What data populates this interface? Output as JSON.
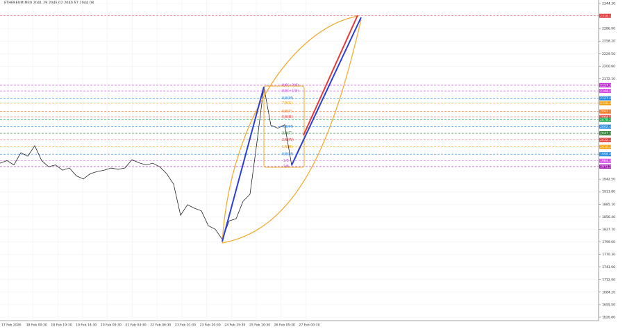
{
  "chart_data": {
    "type": "line",
    "title": "ETHEREUM,M30 2041.29 2045.02 2040.57 2044.08",
    "color": "#222222",
    "values": [
      1979,
      1985,
      1975,
      2003,
      1995,
      2019,
      1985,
      1971,
      1975,
      1963,
      1968,
      1950,
      1943,
      1955,
      1960,
      1963,
      1968,
      1965,
      1968,
      1987,
      1980,
      1975,
      1979,
      1971,
      1955,
      1931,
      1860,
      1884,
      1876,
      1870,
      1836,
      1828,
      1805,
      1847,
      1852,
      1892,
      1908,
      2027,
      2154,
      2066,
      2059,
      2067,
      1974,
      2011,
      2043
    ],
    "x_labels": [
      "17 Feb 2026",
      "18 Feb 00:30",
      "18 Feb 19:30",
      "19 Feb 14:30",
      "20 Feb 09:30",
      "21 Feb 04:30",
      "22 Feb 06:30",
      "23 Feb 01:30",
      "23 Feb 20:30",
      "24 Feb 15:30",
      "25 Feb 10:30",
      "26 Feb 05:30",
      "27 Feb 00:30"
    ],
    "ylim": [
      1626.8,
      2344.3
    ],
    "yticks": [
      {
        "value": 2344.3,
        "label": "2344.30"
      },
      {
        "value": 2286.9,
        "label": "2286.90"
      },
      {
        "value": 2258.2,
        "label": "2258.20"
      },
      {
        "value": 2229.5,
        "label": "2229.50"
      },
      {
        "value": 2200.8,
        "label": "2200.80"
      },
      {
        "value": 2172.1,
        "label": "2172.10"
      },
      {
        "value": 1942.5,
        "label": "1942.50"
      },
      {
        "value": 1913.8,
        "label": "1913.80"
      },
      {
        "value": 1885.1,
        "label": "1885.10"
      },
      {
        "value": 1856.4,
        "label": "1856.40"
      },
      {
        "value": 1827.7,
        "label": "1827.70"
      },
      {
        "value": 1799,
        "label": "1799.00"
      },
      {
        "value": 1770.3,
        "label": "1770.30"
      },
      {
        "value": 1741.6,
        "label": "1741.60"
      },
      {
        "value": 1712.9,
        "label": "1712.90"
      },
      {
        "value": 1684.2,
        "label": "1684.20"
      },
      {
        "value": 1655.5,
        "label": "1655.50"
      },
      {
        "value": 1626.8,
        "label": "1626.80"
      }
    ],
    "grid": true,
    "levels": [
      {
        "value": 2316.12,
        "color": "#e53935"
      },
      {
        "value": 2157.34,
        "color": "#c026d3",
        "name": "8/8(+2/8)"
      },
      {
        "value": 2144.21,
        "color": "#d946ef",
        "name": "8/8(+1/8)"
      },
      {
        "value": 2127.46,
        "color": "#1e88e5",
        "name": "8/8(M)"
      },
      {
        "value": 2116.38,
        "color": "#f59e0b",
        "name": "7/8(S)"
      },
      {
        "value": 2097.13,
        "color": "#f97316",
        "name": "6/8(T)"
      },
      {
        "value": 2084.52,
        "color": "#ef4444",
        "name": "5/8(B)"
      },
      {
        "value": 2078.27,
        "color": "#16a34a"
      },
      {
        "value": 2062.41,
        "color": "#1e88e5",
        "name": "4/8(M)"
      },
      {
        "value": 2047.33,
        "color": "#2e7d32",
        "name": "3/8(T)"
      },
      {
        "value": 2032.18,
        "color": "#e53935",
        "name": "2/8(W)"
      },
      {
        "value": 2016.24,
        "color": "#f59e0b",
        "name": "1/8(R)"
      },
      {
        "value": 1999.46,
        "color": "#1e88e5",
        "name": "0/8(M)"
      },
      {
        "value": 1984.37,
        "color": "#d946ef",
        "name": "-1/8"
      },
      {
        "value": 1971.29,
        "color": "#a21caf",
        "name": "-2/8"
      }
    ]
  }
}
